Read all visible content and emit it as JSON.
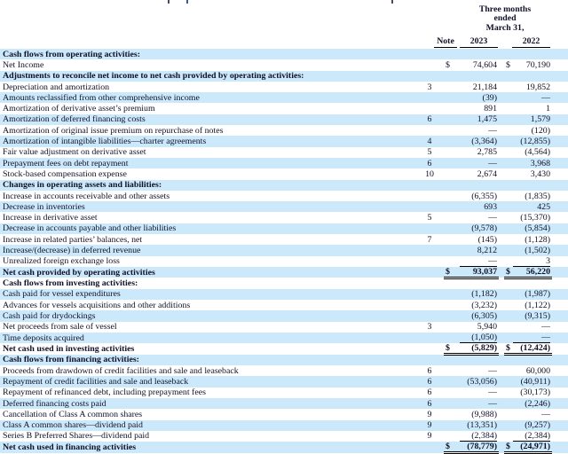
{
  "header": {
    "period_lines": [
      "Three months",
      "ended",
      "March 31,"
    ],
    "col_note": "Note",
    "col_2023": "2023",
    "col_2022": "2022"
  },
  "colors": {
    "row_highlight": "#cce9fb",
    "text": "#0f1026",
    "rule": "#000000"
  },
  "statement": {
    "rows": [
      {
        "label": "Cash flows from operating activities:",
        "type": "section",
        "note": "",
        "v2023": "",
        "v2022": "",
        "dollar": false,
        "underline": ""
      },
      {
        "label": "Net Income",
        "type": "item",
        "note": "",
        "v2023": "74,604",
        "v2022": "70,190",
        "dollar": true,
        "underline": ""
      },
      {
        "label": "Adjustments to reconcile net income to net cash provided by operating activities:",
        "type": "section",
        "note": "",
        "v2023": "",
        "v2022": "",
        "dollar": false,
        "underline": ""
      },
      {
        "label": "Depreciation and amortization",
        "type": "item",
        "note": "3",
        "v2023": "21,184",
        "v2022": "19,852",
        "dollar": false,
        "underline": ""
      },
      {
        "label": "Amounts reclassified from other comprehensive income",
        "type": "item",
        "note": "",
        "v2023": "(39)",
        "v2022": "—",
        "dollar": false,
        "underline": ""
      },
      {
        "label": "Amortization of derivative asset’s premium",
        "type": "item",
        "note": "",
        "v2023": "891",
        "v2022": "1",
        "dollar": false,
        "underline": ""
      },
      {
        "label": "Amortization of deferred financing costs",
        "type": "item",
        "note": "6",
        "v2023": "1,475",
        "v2022": "1,579",
        "dollar": false,
        "underline": ""
      },
      {
        "label": "Amortization of original issue premium on repurchase of notes",
        "type": "item",
        "note": "",
        "v2023": "—",
        "v2022": "(120)",
        "dollar": false,
        "underline": ""
      },
      {
        "label": "Amortization of intangible liabilities—charter agreements",
        "type": "item",
        "note": "4",
        "v2023": "(3,364)",
        "v2022": "(12,855)",
        "dollar": false,
        "underline": ""
      },
      {
        "label": "Fair value adjustment on derivative asset",
        "type": "item",
        "note": "5",
        "v2023": "2,785",
        "v2022": "(4,564)",
        "dollar": false,
        "underline": ""
      },
      {
        "label": "Prepayment fees on debt repayment",
        "type": "item",
        "note": "6",
        "v2023": "—",
        "v2022": "3,968",
        "dollar": false,
        "underline": ""
      },
      {
        "label": "Stock-based compensation expense",
        "type": "item",
        "note": "10",
        "v2023": "2,674",
        "v2022": "3,430",
        "dollar": false,
        "underline": ""
      },
      {
        "label": "Changes in operating assets and liabilities:",
        "type": "section",
        "note": "",
        "v2023": "",
        "v2022": "",
        "dollar": false,
        "underline": ""
      },
      {
        "label": "Increase in accounts receivable and other assets",
        "type": "item",
        "note": "",
        "v2023": "(6,355)",
        "v2022": "(1,835)",
        "dollar": false,
        "underline": ""
      },
      {
        "label": "Decrease in inventories",
        "type": "item",
        "note": "",
        "v2023": "693",
        "v2022": "425",
        "dollar": false,
        "underline": ""
      },
      {
        "label": "Increase in derivative asset",
        "type": "item",
        "note": "5",
        "v2023": "—",
        "v2022": "(15,370)",
        "dollar": false,
        "underline": ""
      },
      {
        "label": "Decrease in accounts payable and other liabilities",
        "type": "item",
        "note": "",
        "v2023": "(9,578)",
        "v2022": "(5,854)",
        "dollar": false,
        "underline": ""
      },
      {
        "label": "Increase in related parties’ balances, net",
        "type": "item",
        "note": "7",
        "v2023": "(145)",
        "v2022": "(1,128)",
        "dollar": false,
        "underline": ""
      },
      {
        "label": "Increase/(decrease) in deferred revenue",
        "type": "item",
        "note": "",
        "v2023": "8,212",
        "v2022": "(1,502)",
        "dollar": false,
        "underline": ""
      },
      {
        "label": "Unrealized foreign exchange loss",
        "type": "item",
        "note": "",
        "v2023": "—",
        "v2022": "3",
        "dollar": false,
        "underline": "single"
      },
      {
        "label": "Net cash provided by operating activities",
        "type": "total",
        "note": "",
        "v2023": "93,037",
        "v2022": "56,220",
        "dollar": true,
        "underline": "double"
      },
      {
        "label": "Cash flows from investing activities:",
        "type": "section",
        "note": "",
        "v2023": "",
        "v2022": "",
        "dollar": false,
        "underline": ""
      },
      {
        "label": "Cash paid for vessel expenditures",
        "type": "item",
        "note": "",
        "v2023": "(1,182)",
        "v2022": "(1,987)",
        "dollar": false,
        "underline": ""
      },
      {
        "label": "Advances for vessels acquisitions and other additions",
        "type": "item",
        "note": "",
        "v2023": "(3,232)",
        "v2022": "(1,122)",
        "dollar": false,
        "underline": ""
      },
      {
        "label": "Cash paid for drydockings",
        "type": "item",
        "note": "",
        "v2023": "(6,305)",
        "v2022": "(9,315)",
        "dollar": false,
        "underline": ""
      },
      {
        "label": "Net proceeds from sale of vessel",
        "type": "item",
        "note": "3",
        "v2023": "5,940",
        "v2022": "—",
        "dollar": false,
        "underline": ""
      },
      {
        "label": "Time deposits acquired",
        "type": "item",
        "note": "",
        "v2023": "(1,050)",
        "v2022": "—",
        "dollar": false,
        "underline": "single"
      },
      {
        "label": "Net cash used in investing activities",
        "type": "total",
        "note": "",
        "v2023": "(5,829)",
        "v2022": "(12,424)",
        "dollar": true,
        "underline": "double"
      },
      {
        "label": "Cash flows from financing activities:",
        "type": "section",
        "note": "",
        "v2023": "",
        "v2022": "",
        "dollar": false,
        "underline": ""
      },
      {
        "label": "Proceeds from drawdown of credit facilities and sale and leaseback",
        "type": "item",
        "note": "6",
        "v2023": "—",
        "v2022": "60,000",
        "dollar": false,
        "underline": ""
      },
      {
        "label": "Repayment of credit facilities and sale and leaseback",
        "type": "item",
        "note": "6",
        "v2023": "(53,056)",
        "v2022": "(40,911)",
        "dollar": false,
        "underline": ""
      },
      {
        "label": "Repayment of refinanced debt, including prepayment fees",
        "type": "item",
        "note": "6",
        "v2023": "—",
        "v2022": "(30,173)",
        "dollar": false,
        "underline": ""
      },
      {
        "label": "Deferred financing costs paid",
        "type": "item",
        "note": "6",
        "v2023": "—",
        "v2022": "(2,246)",
        "dollar": false,
        "underline": ""
      },
      {
        "label": "Cancellation of Class A common shares",
        "type": "item",
        "note": "9",
        "v2023": "(9,988)",
        "v2022": "—",
        "dollar": false,
        "underline": ""
      },
      {
        "label": "Class A common shares—dividend paid",
        "type": "item",
        "note": "9",
        "v2023": "(13,351)",
        "v2022": "(9,257)",
        "dollar": false,
        "underline": ""
      },
      {
        "label": "Series B Preferred Shares—dividend paid",
        "type": "item",
        "note": "9",
        "v2023": "(2,384)",
        "v2022": "(2,384)",
        "dollar": false,
        "underline": "single"
      },
      {
        "label": "Net cash used in financing activities",
        "type": "total",
        "note": "",
        "v2023": "(78,779)",
        "v2022": "(24,971)",
        "dollar": true,
        "underline": "double"
      }
    ]
  }
}
